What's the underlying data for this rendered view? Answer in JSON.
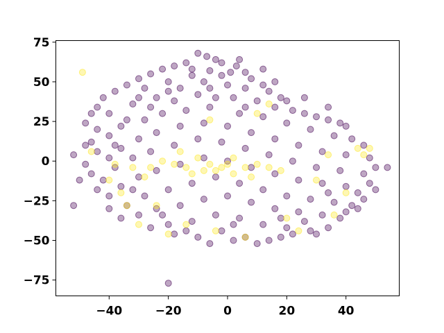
{
  "chart_data": {
    "type": "scatter",
    "title": "",
    "xlabel": "",
    "ylabel": "",
    "xlim": [
      -58,
      58
    ],
    "ylim": [
      -85,
      76
    ],
    "xticks": [
      -40,
      -20,
      0,
      20,
      40
    ],
    "yticks": [
      75,
      50,
      25,
      0,
      -25,
      -50,
      -75
    ],
    "xtick_labels": [
      "−40",
      "−20",
      "0",
      "20",
      "40"
    ],
    "ytick_labels": [
      "75",
      "50",
      "25",
      "0",
      "−25",
      "−50",
      "−75"
    ],
    "grid": false,
    "legend": "none",
    "point_alpha": 0.35,
    "series": [
      {
        "color": "#440154",
        "points": [
          [
            -10,
            68
          ],
          [
            -7,
            66
          ],
          [
            -4,
            64
          ],
          [
            -14,
            62
          ],
          [
            -18,
            60
          ],
          [
            -2,
            62
          ],
          [
            3,
            60
          ],
          [
            6,
            56
          ],
          [
            -22,
            58
          ],
          [
            -26,
            55
          ],
          [
            -12,
            58
          ],
          [
            -6,
            57
          ],
          [
            1,
            56
          ],
          [
            8,
            52
          ],
          [
            12,
            48
          ],
          [
            -30,
            52
          ],
          [
            -34,
            48
          ],
          [
            -38,
            44
          ],
          [
            -28,
            46
          ],
          [
            -20,
            50
          ],
          [
            -16,
            46
          ],
          [
            -8,
            50
          ],
          [
            0,
            48
          ],
          [
            6,
            46
          ],
          [
            14,
            44
          ],
          [
            18,
            40
          ],
          [
            20,
            38
          ],
          [
            -42,
            40
          ],
          [
            -44,
            34
          ],
          [
            -46,
            30
          ],
          [
            -40,
            30
          ],
          [
            -32,
            36
          ],
          [
            -24,
            40
          ],
          [
            -18,
            38
          ],
          [
            -10,
            42
          ],
          [
            -4,
            40
          ],
          [
            2,
            40
          ],
          [
            10,
            38
          ],
          [
            16,
            34
          ],
          [
            22,
            32
          ],
          [
            26,
            30
          ],
          [
            30,
            28
          ],
          [
            34,
            26
          ],
          [
            38,
            24
          ],
          [
            40,
            22
          ],
          [
            -48,
            24
          ],
          [
            -44,
            20
          ],
          [
            -40,
            16
          ],
          [
            -36,
            22
          ],
          [
            -28,
            26
          ],
          [
            -22,
            30
          ],
          [
            -14,
            32
          ],
          [
            -6,
            34
          ],
          [
            4,
            30
          ],
          [
            12,
            28
          ],
          [
            20,
            24
          ],
          [
            28,
            20
          ],
          [
            36,
            16
          ],
          [
            42,
            14
          ],
          [
            46,
            10
          ],
          [
            -46,
            12
          ],
          [
            -44,
            6
          ],
          [
            -40,
            2
          ],
          [
            -36,
            8
          ],
          [
            -30,
            14
          ],
          [
            -24,
            18
          ],
          [
            -16,
            22
          ],
          [
            -8,
            24
          ],
          [
            0,
            22
          ],
          [
            8,
            18
          ],
          [
            16,
            14
          ],
          [
            24,
            10
          ],
          [
            32,
            6
          ],
          [
            40,
            4
          ],
          [
            48,
            2
          ],
          [
            -48,
            -2
          ],
          [
            -46,
            -8
          ],
          [
            -42,
            -12
          ],
          [
            -38,
            -4
          ],
          [
            -32,
            2
          ],
          [
            -26,
            6
          ],
          [
            -18,
            10
          ],
          [
            -10,
            14
          ],
          [
            -2,
            12
          ],
          [
            6,
            8
          ],
          [
            14,
            4
          ],
          [
            22,
            0
          ],
          [
            30,
            -4
          ],
          [
            38,
            -6
          ],
          [
            46,
            -8
          ],
          [
            -44,
            -18
          ],
          [
            -40,
            -22
          ],
          [
            -36,
            -16
          ],
          [
            -30,
            -10
          ],
          [
            -24,
            -6
          ],
          [
            -16,
            -2
          ],
          [
            -8,
            2
          ],
          [
            0,
            0
          ],
          [
            8,
            -4
          ],
          [
            16,
            -8
          ],
          [
            24,
            -12
          ],
          [
            32,
            -14
          ],
          [
            40,
            -16
          ],
          [
            48,
            -14
          ],
          [
            50,
            -4
          ],
          [
            -40,
            -30
          ],
          [
            -34,
            -28
          ],
          [
            -28,
            -22
          ],
          [
            -20,
            -18
          ],
          [
            -12,
            -14
          ],
          [
            -4,
            -10
          ],
          [
            4,
            -14
          ],
          [
            12,
            -18
          ],
          [
            20,
            -22
          ],
          [
            28,
            -24
          ],
          [
            36,
            -26
          ],
          [
            42,
            -28
          ],
          [
            44,
            -20
          ],
          [
            -36,
            -36
          ],
          [
            -30,
            -34
          ],
          [
            -24,
            -30
          ],
          [
            -16,
            -28
          ],
          [
            -8,
            -24
          ],
          [
            0,
            -22
          ],
          [
            8,
            -26
          ],
          [
            16,
            -30
          ],
          [
            24,
            -32
          ],
          [
            32,
            -34
          ],
          [
            38,
            -36
          ],
          [
            40,
            -32
          ],
          [
            -26,
            -42
          ],
          [
            -20,
            -40
          ],
          [
            -12,
            -38
          ],
          [
            -4,
            -34
          ],
          [
            4,
            -36
          ],
          [
            12,
            -40
          ],
          [
            20,
            -42
          ],
          [
            28,
            -44
          ],
          [
            34,
            -42
          ],
          [
            -18,
            -46
          ],
          [
            -10,
            -48
          ],
          [
            -2,
            -44
          ],
          [
            6,
            -48
          ],
          [
            14,
            -50
          ],
          [
            22,
            -46
          ],
          [
            30,
            -46
          ],
          [
            -6,
            -52
          ],
          [
            2,
            -50
          ],
          [
            10,
            -52
          ],
          [
            18,
            -48
          ],
          [
            -2,
            54
          ],
          [
            4,
            64
          ],
          [
            -12,
            54
          ],
          [
            -20,
            44
          ],
          [
            -26,
            34
          ],
          [
            -34,
            26
          ],
          [
            -38,
            10
          ],
          [
            -32,
            -18
          ],
          [
            -22,
            -34
          ],
          [
            -14,
            -44
          ],
          [
            2,
            -40
          ],
          [
            18,
            -36
          ],
          [
            26,
            -38
          ],
          [
            34,
            -20
          ],
          [
            44,
            -30
          ],
          [
            -52,
            -28
          ],
          [
            -20,
            -77
          ],
          [
            -50,
            -12
          ],
          [
            54,
            -4
          ],
          [
            50,
            -18
          ],
          [
            46,
            -24
          ],
          [
            -48,
            10
          ],
          [
            -52,
            4
          ],
          [
            -6,
            46
          ],
          [
            6,
            34
          ],
          [
            -30,
            40
          ],
          [
            26,
            40
          ],
          [
            34,
            34
          ],
          [
            12,
            58
          ],
          [
            16,
            50
          ]
        ]
      },
      {
        "color": "#fde725",
        "points": [
          [
            -49,
            56
          ],
          [
            -10,
            2
          ],
          [
            -6,
            -2
          ],
          [
            -2,
            -4
          ],
          [
            -14,
            -4
          ],
          [
            -18,
            -2
          ],
          [
            -22,
            0
          ],
          [
            -12,
            -8
          ],
          [
            -8,
            -6
          ],
          [
            -4,
            -6
          ],
          [
            0,
            -2
          ],
          [
            2,
            -8
          ],
          [
            6,
            -4
          ],
          [
            10,
            -2
          ],
          [
            14,
            -4
          ],
          [
            18,
            -6
          ],
          [
            8,
            -10
          ],
          [
            -16,
            6
          ],
          [
            -26,
            -4
          ],
          [
            -28,
            -10
          ],
          [
            -30,
            -40
          ],
          [
            -20,
            -46
          ],
          [
            -14,
            -40
          ],
          [
            -24,
            -28
          ],
          [
            -34,
            -28
          ],
          [
            20,
            -36
          ],
          [
            24,
            -44
          ],
          [
            36,
            -34
          ],
          [
            44,
            8
          ],
          [
            46,
            4
          ],
          [
            -46,
            6
          ],
          [
            -40,
            -12
          ],
          [
            -36,
            -20
          ],
          [
            40,
            -20
          ],
          [
            30,
            -12
          ],
          [
            34,
            4
          ],
          [
            6,
            -48
          ],
          [
            -4,
            -44
          ],
          [
            10,
            30
          ],
          [
            14,
            36
          ],
          [
            -6,
            26
          ],
          [
            48,
            8
          ],
          [
            -38,
            -2
          ],
          [
            -32,
            -4
          ],
          [
            2,
            2
          ]
        ]
      }
    ]
  }
}
